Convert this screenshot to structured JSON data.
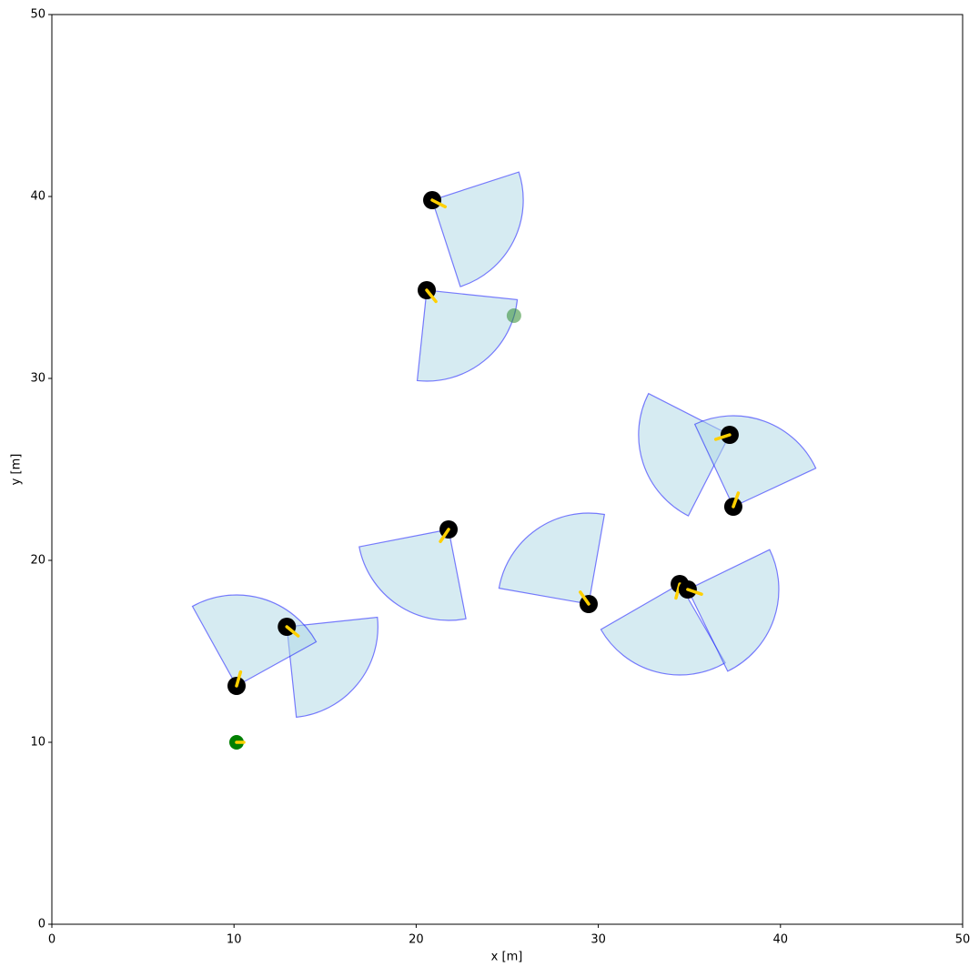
{
  "chart_data": {
    "type": "agents",
    "xlabel": "x [m]",
    "ylabel": "y [m]",
    "xlim": [
      0,
      50
    ],
    "ylim": [
      0,
      50
    ],
    "xticks": [
      0,
      10,
      20,
      30,
      40,
      50
    ],
    "yticks": [
      0,
      10,
      20,
      30,
      40,
      50
    ],
    "vision_range": 5,
    "vision_angle": 90,
    "agents": {
      "color": "#000000",
      "heading_color": "#ffd000",
      "cone_color": "#add8e6",
      "cone_edge": "#0000ff",
      "x": [
        20.88,
        20.58,
        37.21,
        37.41,
        21.78,
        29.47,
        34.47,
        34.91,
        12.9,
        10.14
      ],
      "y": [
        39.8,
        34.85,
        26.9,
        22.95,
        21.7,
        17.6,
        18.7,
        18.4,
        16.35,
        13.1
      ],
      "heading": [
        -27,
        -51,
        198,
        70,
        236,
        125,
        255,
        -19,
        -39,
        74
      ]
    },
    "leader": {
      "color": "#008000",
      "x": 10.14,
      "y": 10.0,
      "heading": 0
    },
    "goal": {
      "color": "#2e8b2e",
      "x": 25.37,
      "y": 33.45
    }
  }
}
